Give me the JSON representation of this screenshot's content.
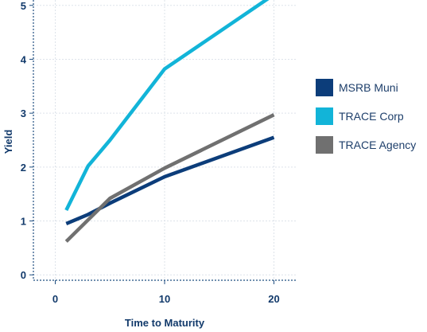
{
  "chart_data": {
    "type": "line",
    "xlabel": "Time to Maturity",
    "ylabel": "Yield",
    "xlim": [
      -2,
      22
    ],
    "ylim": [
      -0.1,
      5.1
    ],
    "xticks": [
      0,
      10,
      20
    ],
    "yticks": [
      0,
      1,
      2,
      3,
      4,
      5
    ],
    "grid": true,
    "legend_position": "right",
    "series": [
      {
        "name": "MSRB Muni",
        "color": "#0c3d7a",
        "x": [
          1,
          3,
          5,
          10,
          20
        ],
        "y": [
          0.95,
          1.12,
          1.33,
          1.82,
          2.55
        ]
      },
      {
        "name": "TRACE Corp",
        "color": "#12b4d8",
        "x": [
          1,
          3,
          5,
          10,
          20
        ],
        "y": [
          1.2,
          2.02,
          2.5,
          3.82,
          5.2
        ]
      },
      {
        "name": "TRACE Agency",
        "color": "#707070",
        "x": [
          1,
          3,
          5,
          10,
          20
        ],
        "y": [
          0.62,
          1.02,
          1.42,
          1.98,
          2.97
        ]
      }
    ]
  }
}
